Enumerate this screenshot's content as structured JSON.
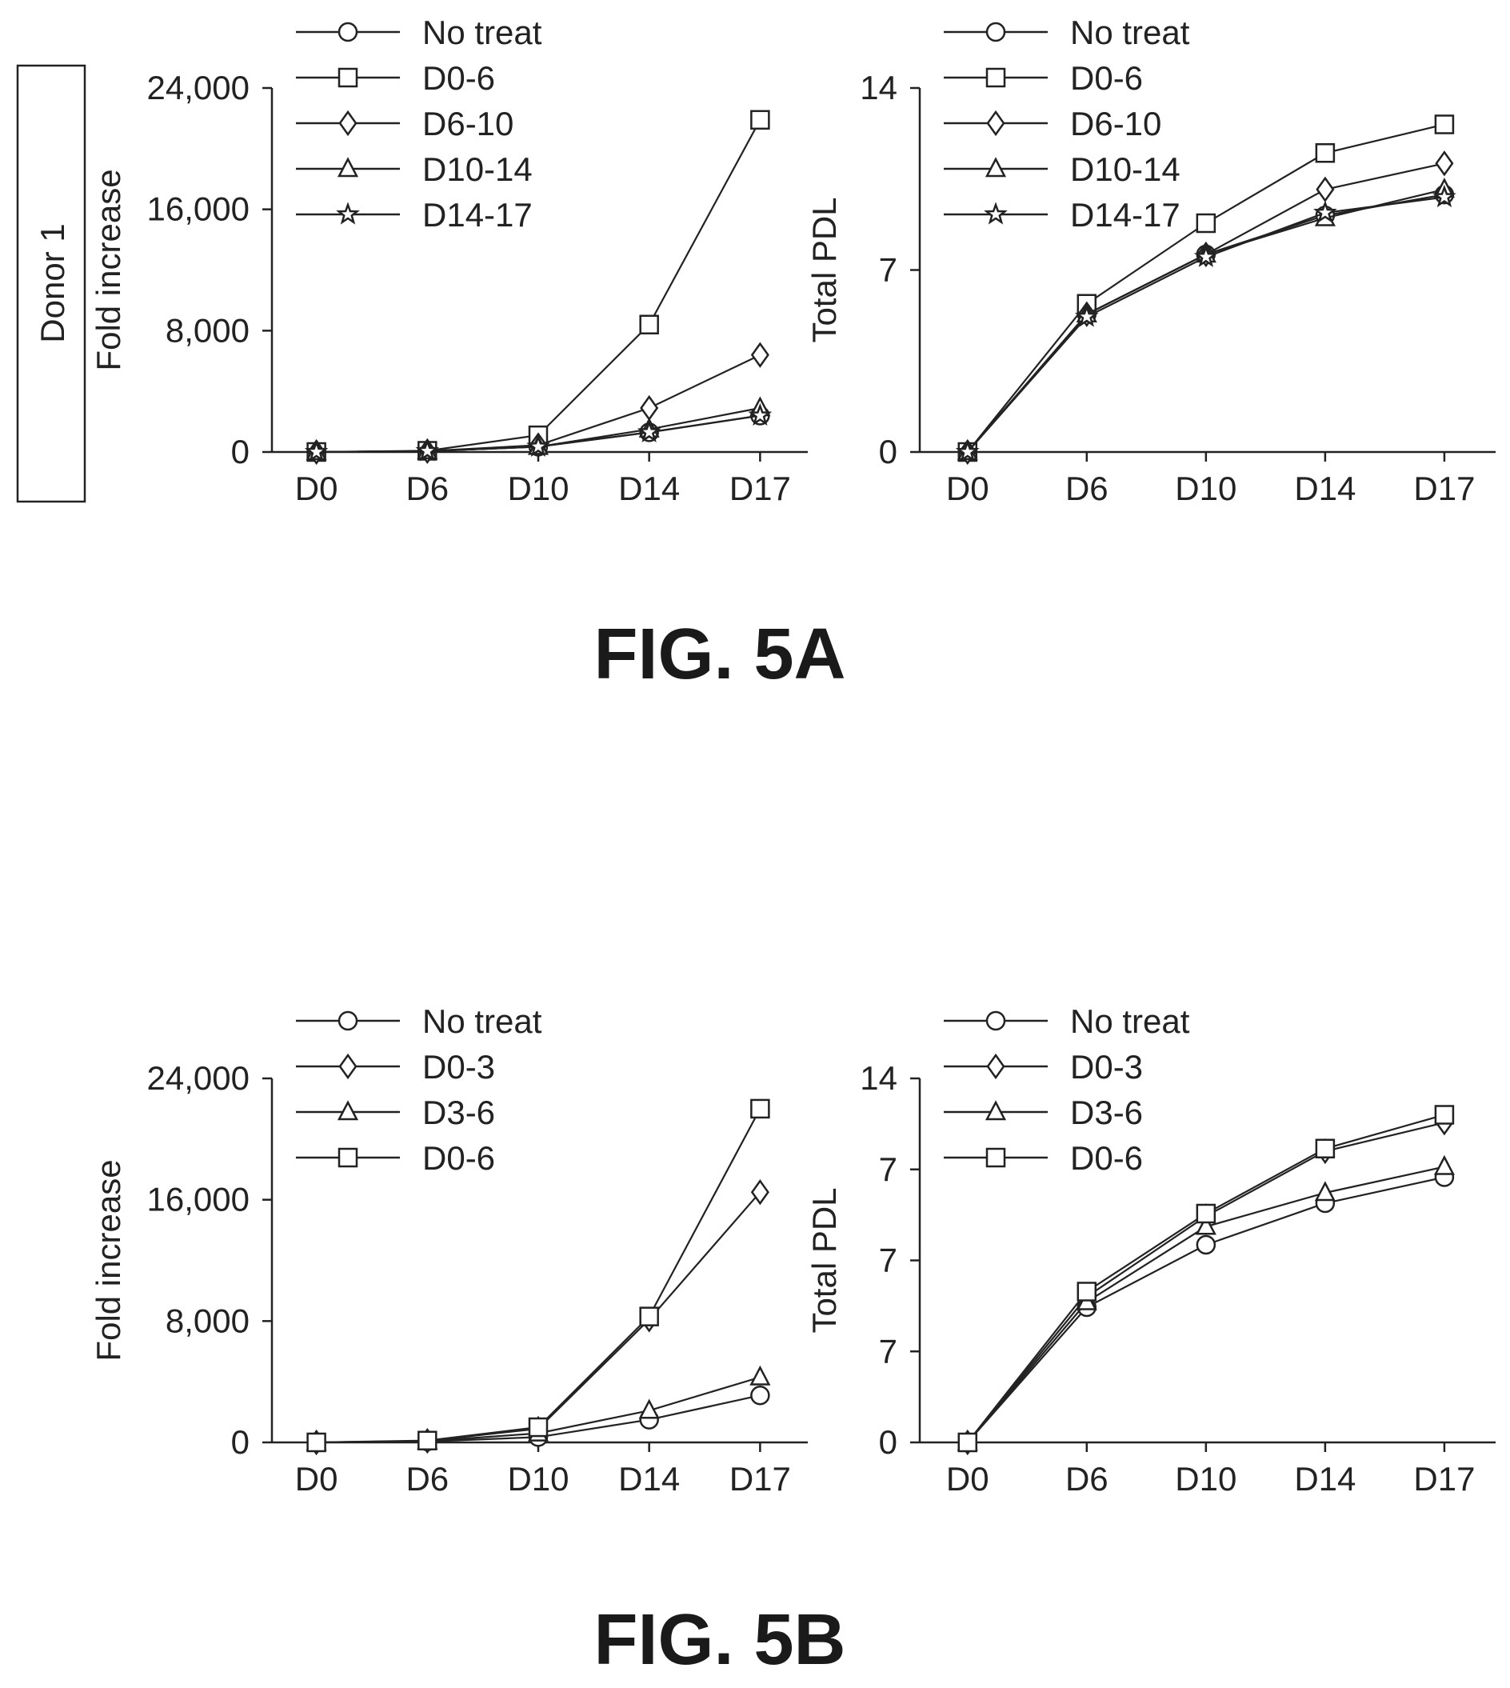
{
  "figure_labels": {
    "a": "FIG. 5A",
    "b": "FIG. 5B"
  },
  "donor_label": "Donor 1",
  "chart_data": [
    {
      "id": "5A-left",
      "type": "line",
      "ylabel": "Fold increase",
      "categories": [
        "D0",
        "D6",
        "D10",
        "D14",
        "D17"
      ],
      "yticks": [
        "0",
        "8,000",
        "16,000",
        "24,000"
      ],
      "ytick_values": [
        0,
        8000,
        16000,
        24000
      ],
      "ylim": [
        0,
        24000
      ],
      "grid": false,
      "legend": "top-left",
      "series": [
        {
          "name": "No treat",
          "marker": "circle",
          "values": [
            1,
            60,
            350,
            1300,
            2400
          ]
        },
        {
          "name": "D0-6",
          "marker": "square",
          "values": [
            1,
            80,
            1100,
            8400,
            21900
          ]
        },
        {
          "name": "D6-10",
          "marker": "diamond",
          "values": [
            1,
            60,
            450,
            2900,
            6400
          ]
        },
        {
          "name": "D10-14",
          "marker": "triangle",
          "values": [
            1,
            60,
            350,
            1500,
            2900
          ]
        },
        {
          "name": "D14-17",
          "marker": "star",
          "values": [
            1,
            60,
            350,
            1300,
            2400
          ]
        }
      ]
    },
    {
      "id": "5A-right",
      "type": "line",
      "ylabel": "Total PDL",
      "categories": [
        "D0",
        "D6",
        "D10",
        "D14",
        "D17"
      ],
      "yticks": [
        "0",
        "7",
        "14"
      ],
      "ytick_values": [
        0,
        7,
        14
      ],
      "ylim": [
        0,
        14
      ],
      "grid": false,
      "legend": "top-left",
      "series": [
        {
          "name": "No treat",
          "marker": "circle",
          "values": [
            0,
            5.3,
            7.6,
            9.1,
            9.9
          ]
        },
        {
          "name": "D0-6",
          "marker": "square",
          "values": [
            0,
            5.7,
            8.8,
            11.5,
            12.6
          ]
        },
        {
          "name": "D6-10",
          "marker": "diamond",
          "values": [
            0,
            5.3,
            7.6,
            10.1,
            11.1
          ]
        },
        {
          "name": "D10-14",
          "marker": "triangle",
          "values": [
            0,
            5.3,
            7.6,
            9.0,
            10.1
          ]
        },
        {
          "name": "D14-17",
          "marker": "star",
          "values": [
            0,
            5.2,
            7.5,
            9.2,
            9.8
          ]
        }
      ]
    },
    {
      "id": "5B-left",
      "type": "line",
      "ylabel": "Fold increase",
      "categories": [
        "D0",
        "D6",
        "D10",
        "D14",
        "D17"
      ],
      "yticks": [
        "0",
        "8,000",
        "16,000",
        "24,000"
      ],
      "ytick_values": [
        0,
        8000,
        16000,
        24000
      ],
      "ylim": [
        0,
        24000
      ],
      "grid": false,
      "legend": "top-left",
      "series": [
        {
          "name": "No treat",
          "marker": "circle",
          "values": [
            1,
            60,
            350,
            1500,
            3100
          ]
        },
        {
          "name": "D0-3",
          "marker": "diamond",
          "values": [
            1,
            100,
            900,
            8100,
            16500
          ]
        },
        {
          "name": "D3-6",
          "marker": "triangle",
          "values": [
            1,
            80,
            600,
            2100,
            4300
          ]
        },
        {
          "name": "D0-6",
          "marker": "square",
          "values": [
            1,
            120,
            1000,
            8300,
            22000
          ]
        }
      ]
    },
    {
      "id": "5B-right",
      "type": "line",
      "ylabel": "Total PDL",
      "categories": [
        "D0",
        "D6",
        "D10",
        "D14",
        "D17"
      ],
      "yticks": [
        "0",
        "7",
        "7",
        "7",
        "14"
      ],
      "ytick_values": [
        0,
        3.5,
        7,
        10.5,
        14
      ],
      "ylim": [
        0,
        14
      ],
      "grid": false,
      "legend": "top-left",
      "series": [
        {
          "name": "No treat",
          "marker": "circle",
          "values": [
            0,
            5.2,
            7.6,
            9.2,
            10.2
          ]
        },
        {
          "name": "D0-3",
          "marker": "diamond",
          "values": [
            0,
            5.6,
            8.7,
            11.2,
            12.3
          ]
        },
        {
          "name": "D3-6",
          "marker": "triangle",
          "values": [
            0,
            5.4,
            8.3,
            9.6,
            10.6
          ]
        },
        {
          "name": "D0-6",
          "marker": "square",
          "values": [
            0,
            5.8,
            8.8,
            11.3,
            12.6
          ]
        }
      ]
    }
  ]
}
